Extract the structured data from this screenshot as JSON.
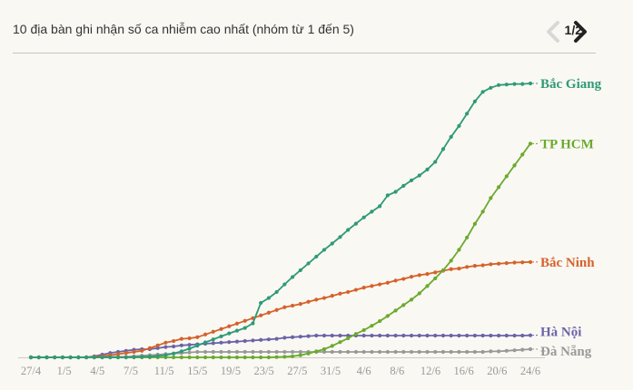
{
  "header": {
    "title": "10 địa bàn ghi nhận số ca nhiễm cao nhất (nhóm từ 1 đến 5)",
    "pager": "1/2"
  },
  "icons": {
    "prev": "chevron-left-icon",
    "next": "chevron-right-icon"
  },
  "colors": {
    "background": "#faf8f3",
    "bac_giang": "#2e9a78",
    "tp_hcm": "#6aaa2e",
    "bac_ninh": "#d5622a",
    "ha_noi": "#6a64a8",
    "da_nang": "#999999",
    "nav_disabled": "#d8d8d8",
    "nav_active": "#222222"
  },
  "chart_data": {
    "type": "line",
    "title": "10 địa bàn ghi nhận số ca nhiễm cao nhất (nhóm từ 1 đến 5)",
    "x_tick_labels": [
      "27/4",
      "1/5",
      "4/5",
      "7/5",
      "11/5",
      "15/5",
      "19/5",
      "23/5",
      "27/5",
      "31/5",
      "4/6",
      "8/6",
      "12/6",
      "16/6",
      "20/6",
      "24/6"
    ],
    "x_start": "27/4",
    "x_end": "24/6",
    "y_axis_visible": false,
    "grid": false,
    "legend": "end-of-line labels",
    "series": [
      {
        "name": "Bắc Giang",
        "values": [
          0,
          0,
          0,
          0,
          0,
          0,
          0,
          0,
          0,
          0,
          0,
          0,
          0,
          1,
          2,
          3,
          5,
          8,
          14,
          22,
          32,
          43,
          55,
          66,
          77,
          88,
          98,
          108,
          125,
          200,
          218,
          240,
          268,
          295,
          320,
          345,
          370,
          395,
          418,
          442,
          468,
          491,
          514,
          535,
          555,
          595,
          608,
          630,
          650,
          668,
          690,
          718,
          765,
          810,
          850,
          895,
          940,
          975,
          990,
          1000,
          1002,
          1004,
          1004,
          1006
        ],
        "color_key": "bac_giang"
      },
      {
        "name": "TP HCM",
        "values": [
          0,
          0,
          0,
          0,
          0,
          0,
          0,
          0,
          0,
          0,
          0,
          0,
          0,
          0,
          0,
          0,
          0,
          0,
          0,
          0,
          0,
          0,
          0,
          0,
          0,
          0,
          0,
          0,
          0,
          0,
          0,
          1,
          2,
          4,
          8,
          14,
          22,
          30,
          42,
          56,
          70,
          86,
          100,
          116,
          133,
          152,
          172,
          192,
          212,
          235,
          262,
          290,
          320,
          355,
          395,
          440,
          490,
          535,
          585,
          625,
          665,
          705,
          745,
          785
        ],
        "color_key": "tp_hcm"
      },
      {
        "name": "Bắc Ninh",
        "values": [
          0,
          0,
          0,
          0,
          0,
          0,
          0,
          0,
          2,
          4,
          8,
          12,
          16,
          20,
          24,
          34,
          44,
          54,
          60,
          68,
          70,
          74,
          84,
          94,
          104,
          114,
          124,
          134,
          144,
          154,
          164,
          174,
          184,
          190,
          196,
          204,
          212,
          218,
          226,
          234,
          240,
          248,
          256,
          262,
          268,
          274,
          282,
          288,
          296,
          302,
          306,
          312,
          318,
          324,
          326,
          332,
          336,
          338,
          342,
          344,
          346,
          348,
          349,
          350
        ],
        "color_key": "bac_ninh"
      },
      {
        "name": "Hà Nội",
        "values": [
          0,
          0,
          0,
          0,
          0,
          0,
          0,
          0,
          4,
          10,
          16,
          20,
          24,
          28,
          30,
          30,
          34,
          38,
          40,
          44,
          46,
          48,
          50,
          52,
          54,
          56,
          58,
          60,
          62,
          64,
          66,
          68,
          72,
          74,
          76,
          78,
          80,
          80,
          80,
          80,
          80,
          80,
          80,
          80,
          80,
          80,
          80,
          80,
          80,
          80,
          80,
          80,
          80,
          80,
          80,
          80,
          80,
          80,
          80,
          80,
          80,
          80,
          80,
          81
        ],
        "color_key": "ha_noi"
      },
      {
        "name": "Đà Nẵng",
        "values": [
          0,
          0,
          0,
          0,
          0,
          0,
          0,
          0,
          0,
          0,
          2,
          2,
          2,
          4,
          6,
          8,
          10,
          12,
          14,
          16,
          18,
          20,
          20,
          20,
          20,
          20,
          20,
          20,
          20,
          20,
          20,
          20,
          20,
          20,
          20,
          20,
          20,
          20,
          20,
          20,
          20,
          20,
          20,
          20,
          20,
          20,
          20,
          20,
          20,
          20,
          20,
          20,
          20,
          20,
          20,
          20,
          20,
          20,
          22,
          22,
          24,
          26,
          28,
          30
        ],
        "color_key": "da_nang"
      }
    ]
  }
}
